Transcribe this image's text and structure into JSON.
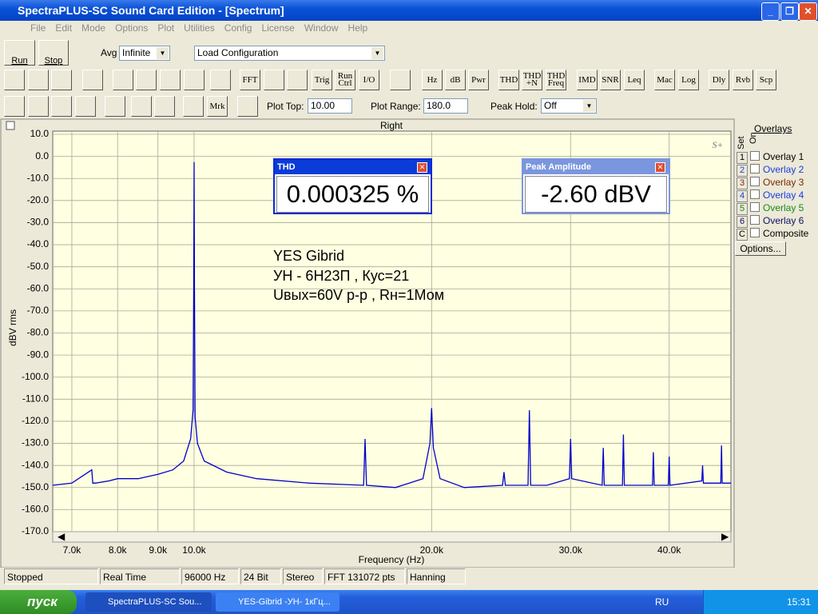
{
  "window": {
    "title": "SpectraPLUS-SC Sound Card Edition - [Spectrum]"
  },
  "menu": [
    "File",
    "Edit",
    "Mode",
    "Options",
    "Plot",
    "Utilities",
    "Config",
    "License",
    "Window",
    "Help"
  ],
  "toolbar": {
    "run": "Run",
    "stop": "Stop",
    "avg_label": "Avg",
    "avg_value": "Infinite",
    "config": "Load Configuration"
  },
  "toolbar2": [
    "FFT",
    "Trig",
    "Run Ctrl",
    "I/O",
    "Hz",
    "dB",
    "Pwr",
    "THD",
    "THD +N",
    "THD Freq",
    "IMD",
    "SNR",
    "Leq",
    "Mac",
    "Log",
    "Dly",
    "Rvb",
    "Scp"
  ],
  "toolbar3": {
    "marker": "Mrk",
    "plot_top_label": "Plot Top:",
    "plot_top": "10.00",
    "plot_range_label": "Plot Range:",
    "plot_range": "180.0",
    "peak_hold_label": "Peak Hold:",
    "peak_hold": "Off"
  },
  "chart_data": {
    "type": "line",
    "title": "Right",
    "logo": "S+",
    "y_label": "dBV rms",
    "x_label": "Frequency (Hz)",
    "x": [
      6620,
      7000,
      7420,
      7440,
      7500,
      7800,
      8000,
      8500,
      9000,
      9400,
      9700,
      9900,
      9970,
      9990,
      10000,
      10010,
      10030,
      10100,
      10300,
      11000,
      12000,
      14000,
      16400,
      16470,
      16540,
      18000,
      19500,
      19900,
      20000,
      20100,
      20500,
      22000,
      24600,
      24700,
      24800,
      26500,
      26600,
      26700,
      28000,
      29900,
      30000,
      30100,
      32900,
      33000,
      33100,
      34900,
      35000,
      35100,
      38100,
      38200,
      38300,
      39900,
      40000,
      40100,
      44000,
      44100,
      44200,
      46500,
      46600,
      46700,
      47900
    ],
    "values": [
      -149,
      -148,
      -142,
      -148,
      -148,
      -147,
      -146,
      -146,
      -144,
      -142,
      -138,
      -128,
      -115,
      -60,
      -2.6,
      -55,
      -118,
      -130,
      -138,
      -143,
      -146,
      -148,
      -149,
      -128,
      -149,
      -150,
      -146,
      -130,
      -114,
      -132,
      -146,
      -150,
      -149,
      -143,
      -149,
      -149,
      -115,
      -149,
      -149,
      -146,
      -128,
      -146,
      -149,
      -132,
      -149,
      -149,
      -126,
      -149,
      -149,
      -134,
      -149,
      -149,
      -136,
      -149,
      -147,
      -140,
      -148,
      -148,
      -131,
      -148,
      -148
    ],
    "color": "#0000cc",
    "xscale": "log",
    "grid": true,
    "xlim": [
      6620,
      47900
    ],
    "xticks": [
      {
        "value": 7000,
        "label": "7.0k"
      },
      {
        "value": 8000,
        "label": "8.0k"
      },
      {
        "value": 9000,
        "label": "9.0k"
      },
      {
        "value": 10000,
        "label": "10.0k"
      },
      {
        "value": 20000,
        "label": "20.0k"
      },
      {
        "value": 30000,
        "label": "30.0k"
      },
      {
        "value": 40000,
        "label": "40.0k"
      }
    ],
    "ylim": [
      -170,
      10
    ],
    "yticks": [
      {
        "value": 10,
        "label": "10.0"
      },
      {
        "value": 0,
        "label": "0.0"
      },
      {
        "value": -10,
        "label": "-10.0"
      },
      {
        "value": -20,
        "label": "-20.0"
      },
      {
        "value": -30,
        "label": "-30.0"
      },
      {
        "value": -40,
        "label": "-40.0"
      },
      {
        "value": -50,
        "label": "-50.0"
      },
      {
        "value": -60,
        "label": "-60.0"
      },
      {
        "value": -70,
        "label": "-70.0"
      },
      {
        "value": -80,
        "label": "-80.0"
      },
      {
        "value": -90,
        "label": "-90.0"
      },
      {
        "value": -100,
        "label": "-100.0"
      },
      {
        "value": -110,
        "label": "-110.0"
      },
      {
        "value": -120,
        "label": "-120.0"
      },
      {
        "value": -130,
        "label": "-130.0"
      },
      {
        "value": -140,
        "label": "-140.0"
      },
      {
        "value": -150,
        "label": "-150.0"
      },
      {
        "value": -160,
        "label": "-160.0"
      },
      {
        "value": -170,
        "label": "-170.0"
      }
    ]
  },
  "readouts": [
    {
      "title": "THD",
      "value": "0.000325 %"
    },
    {
      "title": "Peak Amplitude",
      "value": "-2.60 dBV"
    }
  ],
  "annotations": [
    "YES Gibrid",
    "УН - 6Н23П , Кус=21",
    "Uвых=60V p-p , Rн=1Мом"
  ],
  "overlays": {
    "title": "Overlays",
    "set": "Set",
    "on": "On",
    "items": [
      {
        "num": "1",
        "name": "Overlay 1"
      },
      {
        "num": "2",
        "name": "Overlay 2"
      },
      {
        "num": "3",
        "name": "Overlay 3"
      },
      {
        "num": "4",
        "name": "Overlay 4"
      },
      {
        "num": "5",
        "name": "Overlay 5"
      },
      {
        "num": "6",
        "name": "Overlay 6"
      },
      {
        "num": "C",
        "name": "Composite"
      }
    ],
    "options": "Options..."
  },
  "status": [
    "Stopped",
    "Real Time",
    "96000 Hz",
    "24 Bit",
    "Stereo",
    "FFT 131072 pts",
    "Hanning"
  ],
  "taskbar": {
    "start": "пуск",
    "tasks": [
      "SpectraPLUS-SC Sou...",
      "YES-Gibrid -УН- 1кГц..."
    ],
    "lang": "RU",
    "clock": "15:31"
  }
}
